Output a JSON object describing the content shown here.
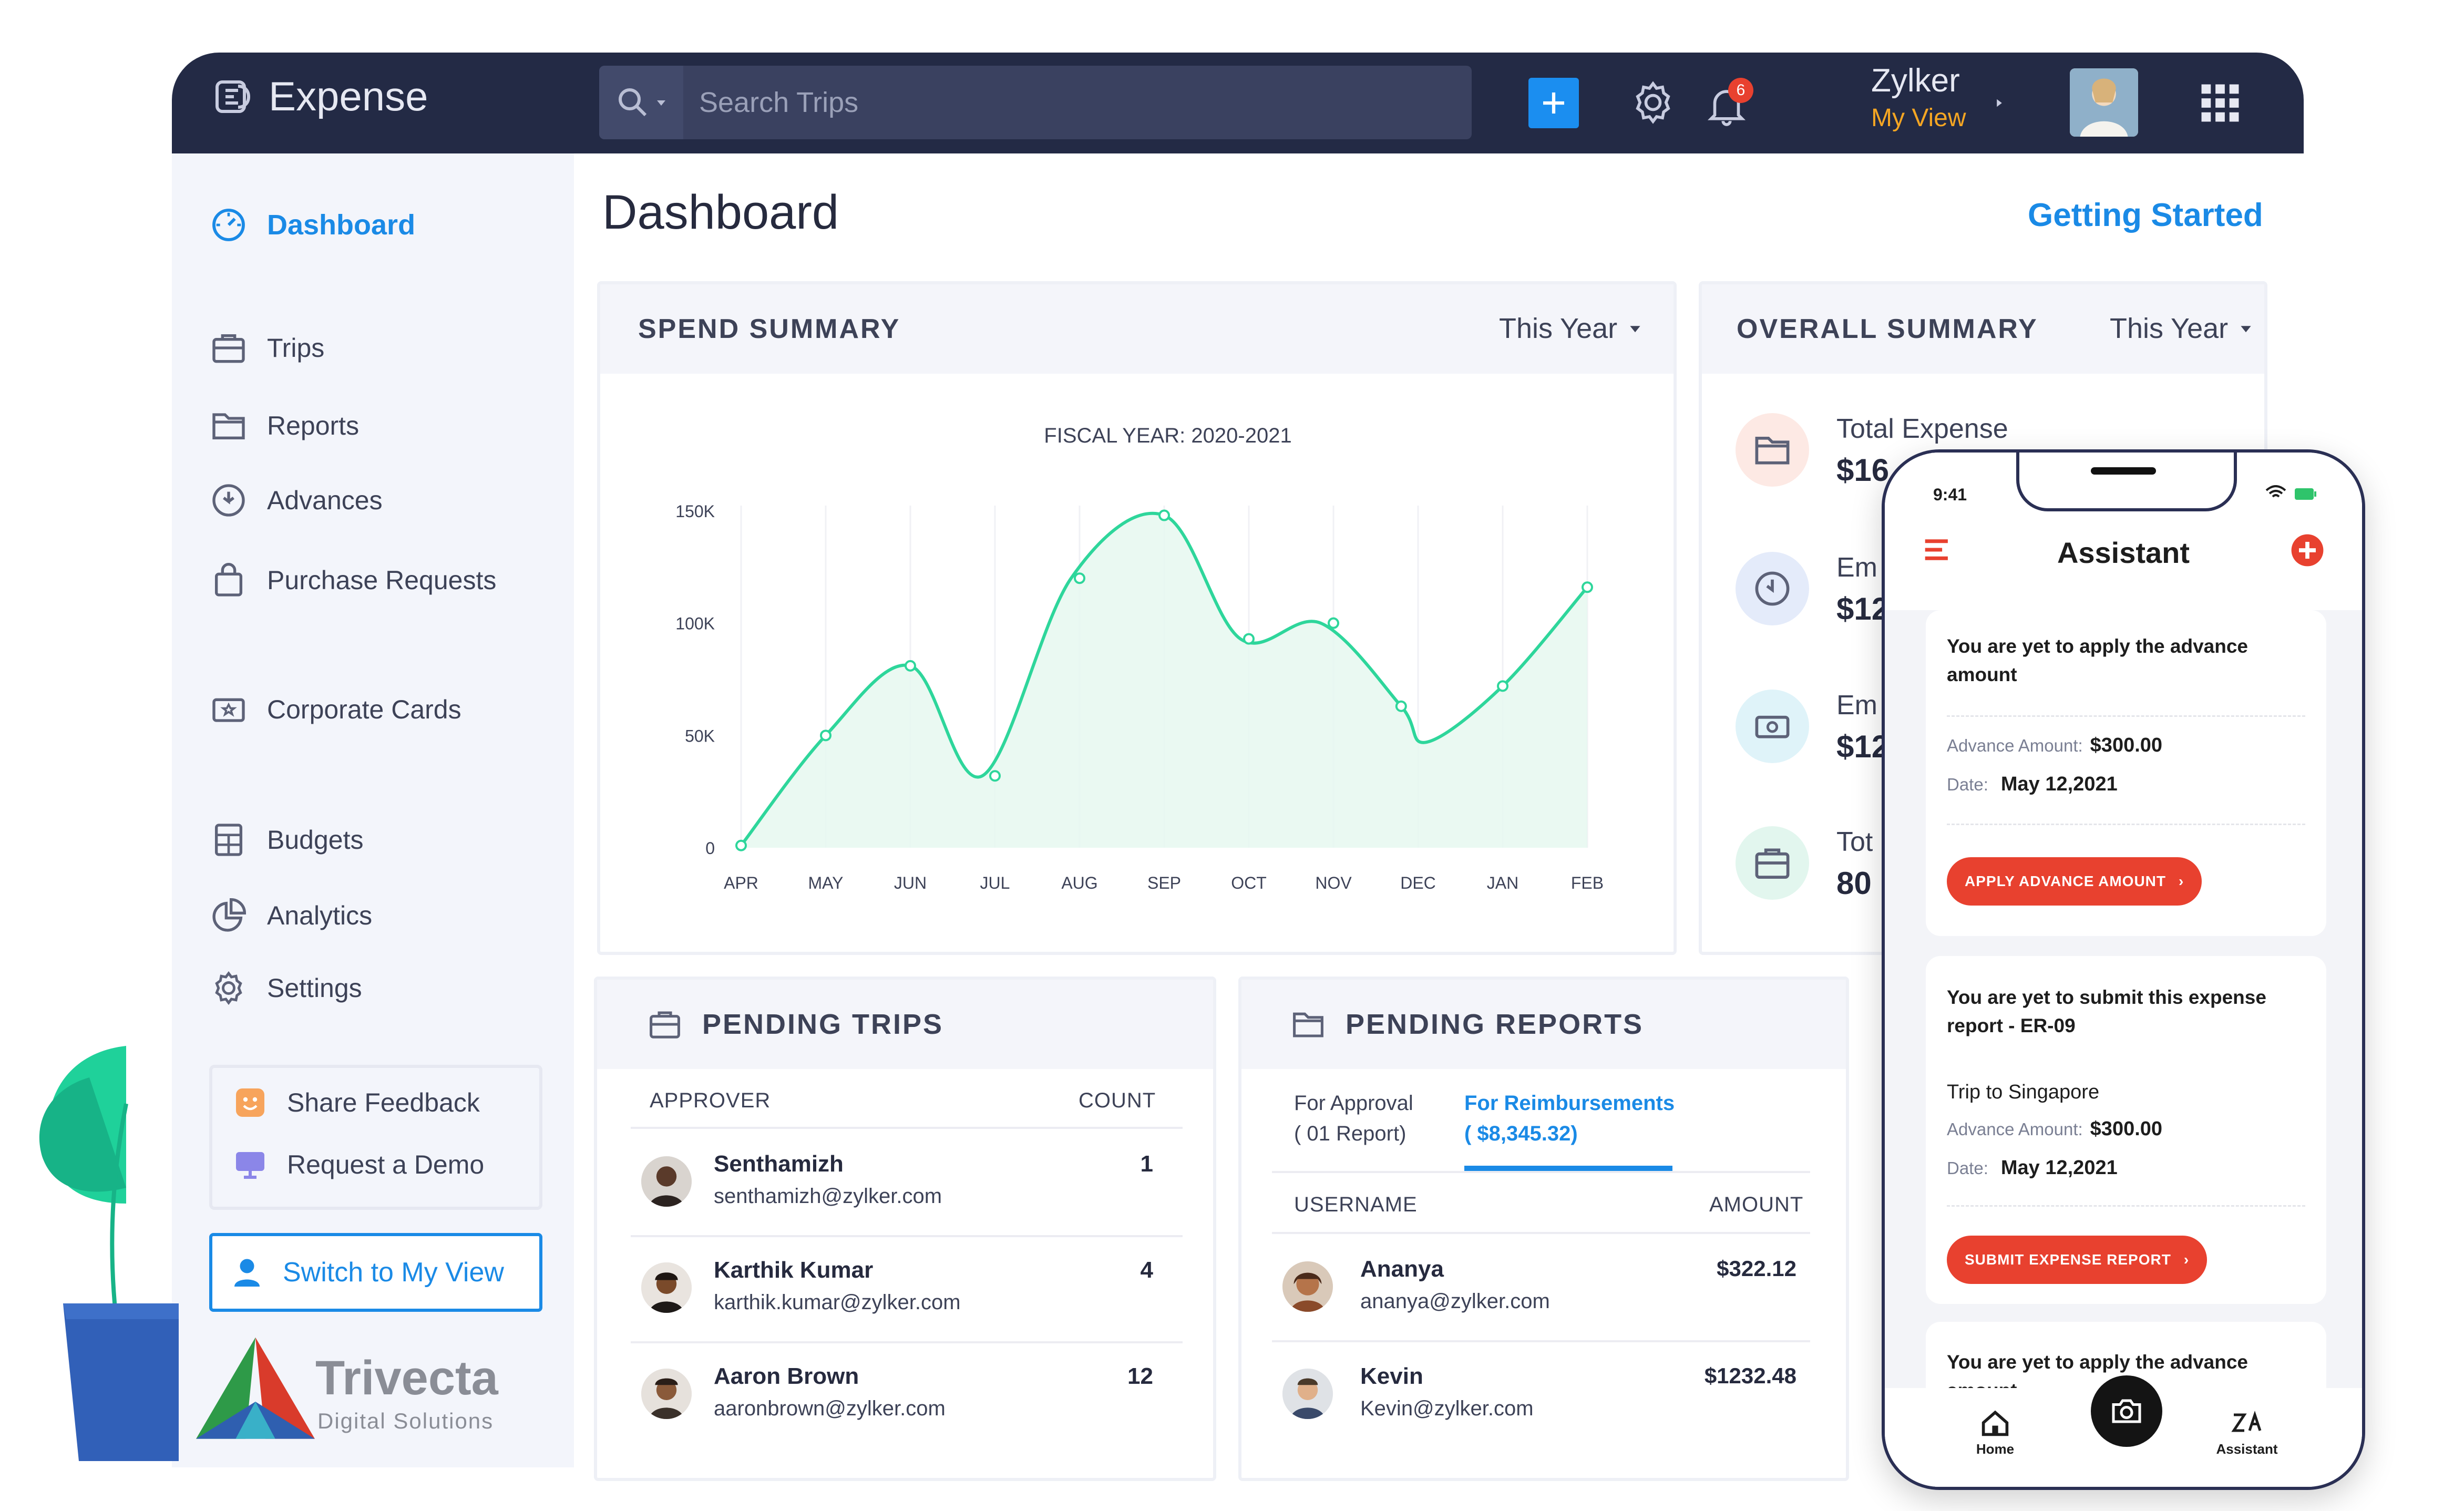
{
  "app": {
    "name": "Expense"
  },
  "topbar": {
    "search_placeholder": "Search Trips",
    "notification_count": "6",
    "org_name": "Zylker",
    "view_label": "My View"
  },
  "sidebar": {
    "items": [
      {
        "label": "Dashboard",
        "icon": "dashboard-icon"
      },
      {
        "label": "Trips",
        "icon": "briefcase-icon"
      },
      {
        "label": "Reports",
        "icon": "folder-icon"
      },
      {
        "label": "Advances",
        "icon": "advance-icon"
      },
      {
        "label": "Purchase Requests",
        "icon": "bag-icon"
      },
      {
        "label": "Corporate Cards",
        "icon": "card-icon"
      },
      {
        "label": "Budgets",
        "icon": "calculator-icon"
      },
      {
        "label": "Analytics",
        "icon": "pie-chart-icon"
      },
      {
        "label": "Settings",
        "icon": "gear-icon"
      }
    ],
    "feedback_label": "Share Feedback",
    "demo_label": "Request a Demo",
    "switch_label": "Switch to My View"
  },
  "header": {
    "title": "Dashboard",
    "getting_started": "Getting Started"
  },
  "spend_summary": {
    "title": "SPEND SUMMARY",
    "period": "This Year"
  },
  "chart_data": {
    "type": "area",
    "title": "FISCAL YEAR: 2020-2021",
    "categories": [
      "APR",
      "MAY",
      "JUN",
      "JUL",
      "AUG",
      "SEP",
      "OCT",
      "NOV",
      "DEC",
      "JAN",
      "FEB"
    ],
    "x": [
      0,
      1,
      2,
      3,
      4,
      5,
      6,
      7,
      8,
      9,
      10
    ],
    "series": [
      {
        "values": [
          1,
          50,
          81,
          32,
          120,
          148,
          93,
          100,
          63,
          72,
          116
        ]
      }
    ],
    "points_x": [
      0,
      1,
      2,
      2.85,
      3.9,
      5.0,
      5.9,
      6.85,
      7.8,
      8.1,
      9.0,
      10.0
    ],
    "points_y": [
      1,
      50,
      81,
      32,
      120,
      148,
      93,
      100,
      63,
      47,
      72,
      116
    ],
    "yticks": [
      "0",
      "50K",
      "100K",
      "150K"
    ],
    "ylim": [
      0,
      150
    ],
    "color": "#2ed69b"
  },
  "overall_summary": {
    "title": "OVERALL SUMMARY",
    "period": "This Year",
    "items": [
      {
        "label": "Total Expense",
        "value": "$16",
        "icon": "folder-icon",
        "bg": "#fde9e4"
      },
      {
        "label": "Em",
        "value": "$12",
        "icon": "clock-icon",
        "bg": "#e4ebfa"
      },
      {
        "label": "Em",
        "value": "$12",
        "icon": "cash-icon",
        "bg": "#dff3f9"
      },
      {
        "label": "Tot",
        "value": "80",
        "icon": "briefcase-icon",
        "bg": "#e2f6ee"
      }
    ]
  },
  "pending_trips": {
    "title": "PENDING TRIPS",
    "col_approver": "APPROVER",
    "col_count": "COUNT",
    "rows": [
      {
        "name": "Senthamizh",
        "email": "senthamizh@zylker.com",
        "count": "1"
      },
      {
        "name": "Karthik Kumar",
        "email": "karthik.kumar@zylker.com",
        "count": "4"
      },
      {
        "name": "Aaron Brown",
        "email": "aaronbrown@zylker.com",
        "count": "12"
      }
    ]
  },
  "pending_reports": {
    "title": "PENDING REPORTS",
    "tab1_line1": "For Approval",
    "tab1_line2": "( 01 Report)",
    "tab2_line1": "For Reimbursements",
    "tab2_line2": "( $8,345.32)",
    "col_user": "USERNAME",
    "col_amount": "AMOUNT",
    "rows": [
      {
        "name": "Ananya",
        "email": "ananya@zylker.com",
        "amount": "$322.12"
      },
      {
        "name": "Kevin",
        "email": "Kevin@zylker.com",
        "amount": "$1232.48"
      }
    ]
  },
  "phone": {
    "time": "9:41",
    "title": "Assistant",
    "card1": {
      "message": "You are yet to apply the advance amount",
      "amount_label": "Advance Amount:",
      "amount": "$300.00",
      "date_label": "Date:",
      "date": "May 12,2021",
      "button": "APPLY ADVANCE AMOUNT"
    },
    "card2": {
      "message": "You are yet to submit this expense report - ER-09",
      "trip": "Trip to Singapore",
      "amount_label": "Advance Amount:",
      "amount": "$300.00",
      "date_label": "Date:",
      "date": "May 12,2021",
      "button": "SUBMIT EXPENSE REPORT"
    },
    "card3": {
      "message": "You are yet to apply the advance amount"
    },
    "tabs": {
      "home": "Home",
      "assistant": "Assistant"
    }
  },
  "watermark": {
    "brand": "Trivecta",
    "tagline": "Digital Solutions"
  }
}
